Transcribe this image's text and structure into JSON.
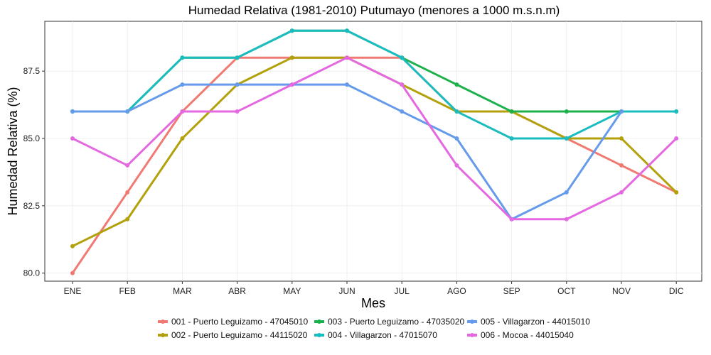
{
  "chart_data": {
    "type": "line",
    "title": "Humedad Relativa (1981-2010) Putumayo (menores a 1000 m.s.n.m)",
    "xlabel": "Mes",
    "ylabel": "Humedad Relativa (%)",
    "categories": [
      "ENE",
      "FEB",
      "MAR",
      "ABR",
      "MAY",
      "JUN",
      "JUL",
      "AGO",
      "SEP",
      "OCT",
      "NOV",
      "DIC"
    ],
    "ylim": [
      79.7,
      89.35
    ],
    "yticks": [
      80.0,
      82.5,
      85.0,
      87.5
    ],
    "ytick_labels": [
      "80.0",
      "82.5",
      "85.0",
      "87.5"
    ],
    "series": [
      {
        "name": "001 - Puerto Leguizamo - 47045010",
        "color": "#F07A72",
        "values": [
          80,
          83,
          86,
          88,
          88,
          88,
          88,
          86,
          86,
          85,
          84,
          83
        ]
      },
      {
        "name": "002 - Puerto Leguizamo - 44115020",
        "color": "#B3A10B",
        "values": [
          81,
          82,
          85,
          87,
          88,
          88,
          87,
          86,
          86,
          85,
          85,
          83
        ]
      },
      {
        "name": "003 - Puerto Leguizamo - 47035020",
        "color": "#1DB14B",
        "values": [
          86,
          86,
          88,
          88,
          89,
          89,
          88,
          87,
          86,
          86,
          86,
          86
        ]
      },
      {
        "name": "004 - Villagarzon - 47015070",
        "color": "#1BBCC0",
        "values": [
          86,
          86,
          88,
          88,
          89,
          89,
          88,
          86,
          85,
          85,
          86,
          86
        ]
      },
      {
        "name": "005 - Villagarzon - 44015010",
        "color": "#659BEA",
        "values": [
          86,
          86,
          87,
          87,
          87,
          87,
          86,
          85,
          82,
          83,
          86,
          null
        ]
      },
      {
        "name": "006 - Mocoa - 44015040",
        "color": "#E469E0",
        "values": [
          85,
          84,
          86,
          86,
          87,
          88,
          87,
          84,
          82,
          82,
          83,
          85
        ]
      }
    ],
    "legend_position": "bottom",
    "grid": true
  }
}
